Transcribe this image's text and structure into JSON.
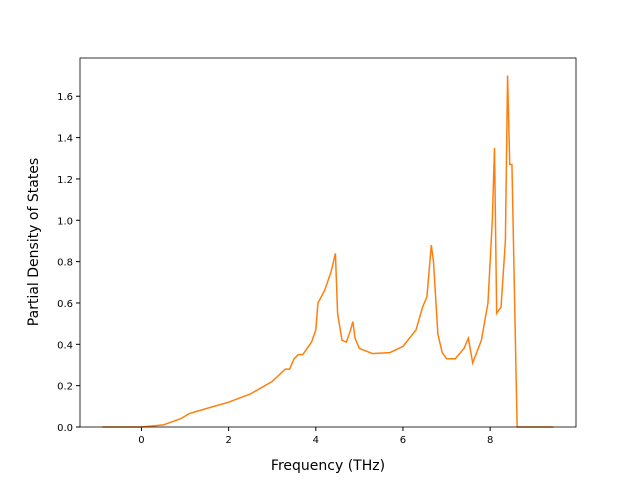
{
  "chart_data": {
    "type": "line",
    "xlabel": "Frequency (THz)",
    "ylabel": "Partial Density of States",
    "x": [
      -0.9,
      0,
      0.5,
      0.9,
      1.1,
      1.5,
      2,
      2.5,
      3,
      3.3,
      3.4,
      3.5,
      3.6,
      3.7,
      3.9,
      4.0,
      4.05,
      4.2,
      4.35,
      4.45,
      4.5,
      4.6,
      4.7,
      4.8,
      4.85,
      4.9,
      5.0,
      5.3,
      5.7,
      6.0,
      6.3,
      6.45,
      6.55,
      6.65,
      6.7,
      6.8,
      6.9,
      7.0,
      7.2,
      7.4,
      7.5,
      7.6,
      7.8,
      7.95,
      8.05,
      8.1,
      8.15,
      8.25,
      8.35,
      8.4,
      8.45,
      8.5,
      8.6,
      8.62,
      9.45
    ],
    "series": [
      {
        "color": "#ff7f0e",
        "values": [
          0,
          0,
          0.01,
          0.04,
          0.065,
          0.09,
          0.12,
          0.16,
          0.22,
          0.28,
          0.28,
          0.33,
          0.35,
          0.35,
          0.41,
          0.47,
          0.6,
          0.66,
          0.75,
          0.84,
          0.55,
          0.42,
          0.41,
          0.47,
          0.51,
          0.43,
          0.38,
          0.355,
          0.36,
          0.39,
          0.47,
          0.58,
          0.63,
          0.88,
          0.8,
          0.45,
          0.36,
          0.33,
          0.33,
          0.38,
          0.43,
          0.31,
          0.42,
          0.6,
          1.0,
          1.35,
          0.55,
          0.58,
          0.9,
          1.7,
          1.27,
          1.27,
          0.2,
          0,
          0
        ]
      }
    ],
    "xlim": [
      -1.41,
      9.97
    ],
    "ylim": [
      0,
      1.785
    ],
    "xticks": [
      0,
      2,
      4,
      6,
      8
    ],
    "yticks": [
      {
        "value": 0,
        "label": "0.0"
      },
      {
        "value": 0.2,
        "label": "0.2"
      },
      {
        "value": 0.4,
        "label": "0.4"
      },
      {
        "value": 0.6,
        "label": "0.6"
      },
      {
        "value": 0.8,
        "label": "0.8"
      },
      {
        "value": 1.0,
        "label": "1.0"
      },
      {
        "value": 1.2,
        "label": "1.2"
      },
      {
        "value": 1.4,
        "label": "1.4"
      },
      {
        "value": 1.6,
        "label": "1.6"
      }
    ]
  }
}
